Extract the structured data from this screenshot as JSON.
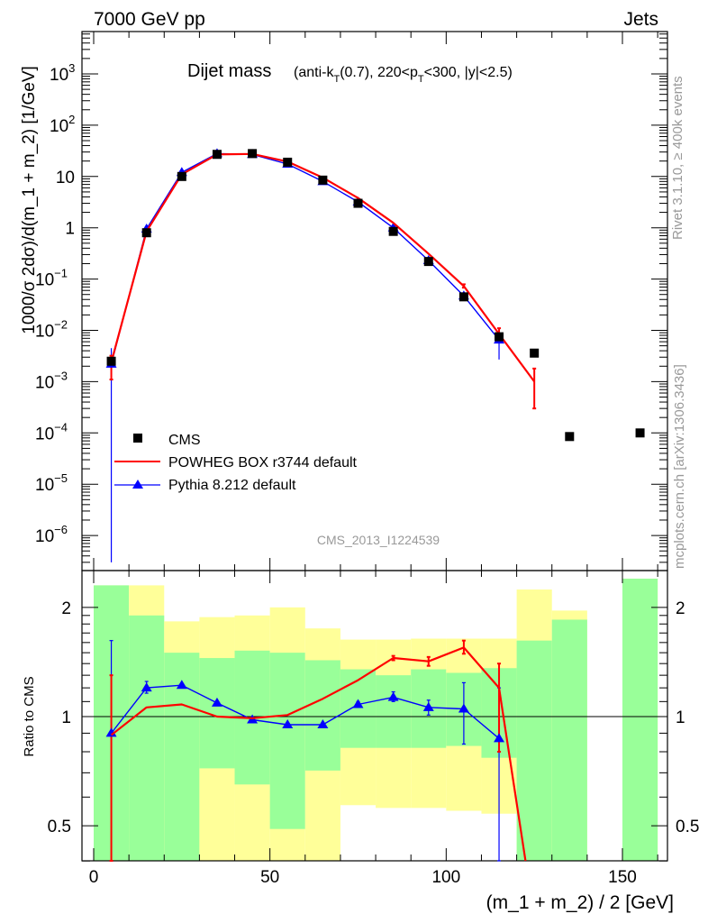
{
  "header": {
    "left": "7000 GeV pp",
    "right": "Jets"
  },
  "side_labels": {
    "rivet": "Rivet 3.1.10, ≥ 400k events",
    "mcplots": "mcplots.cern.ch [arXiv:1306.3436]"
  },
  "colors": {
    "cms": "#000000",
    "powheg": "#ff0000",
    "pythia": "#0000ff",
    "band_inner": "#99ff99",
    "band_outer": "#ffff99"
  },
  "chart_data": {
    "type": "line",
    "title": "Dijet mass",
    "subtitle": "(anti-k_T(0.7), 220<p_T<300, |y|<2.5)",
    "analysis": "CMS_2013_I1224539",
    "xlabel": "(m_1 + m_2) / 2 [GeV]",
    "ylabel": "1000/σ 2dσ)/d(m_1 + m_2) [1/GeV]",
    "ratio_ylabel": "Ratio to CMS",
    "xlim": [
      -5,
      163
    ],
    "ylim": [
      3e-07,
      7000
    ],
    "ratio_ylim": [
      0.35,
      2.3
    ],
    "x_ticks": [
      0,
      50,
      100,
      150
    ],
    "ratio_ticks": [
      0.5,
      1,
      2
    ],
    "legend": [
      "CMS",
      "POWHEG BOX r3744 default",
      "Pythia 8.212 default"
    ],
    "legend_position": "lower-left",
    "x": [
      5,
      15,
      25,
      35,
      45,
      55,
      65,
      75,
      85,
      95,
      105,
      115,
      125,
      135,
      155
    ],
    "cms": [
      0.0025,
      0.8,
      10,
      27,
      28,
      19,
      8.5,
      3.0,
      0.85,
      0.22,
      0.045,
      0.0075,
      0.0036,
      8.5e-05,
      0.0001
    ],
    "powheg": [
      {
        "x": 5,
        "y": 0.0024,
        "lo": 0.0011,
        "hi": 0.0032
      },
      {
        "x": 15,
        "y": 0.85
      },
      {
        "x": 25,
        "y": 11
      },
      {
        "x": 35,
        "y": 27
      },
      {
        "x": 45,
        "y": 27.5
      },
      {
        "x": 55,
        "y": 19.5
      },
      {
        "x": 65,
        "y": 9.5
      },
      {
        "x": 75,
        "y": 3.8
      },
      {
        "x": 85,
        "y": 1.25
      },
      {
        "x": 95,
        "y": 0.31
      },
      {
        "x": 105,
        "y": 0.073,
        "lo": 0.068,
        "hi": 0.079
      },
      {
        "x": 115,
        "y": 0.0085,
        "lo": 0.0065,
        "hi": 0.011
      },
      {
        "x": 125,
        "y": 0.001,
        "lo": 0.0003,
        "hi": 0.0018
      }
    ],
    "pythia": [
      {
        "x": 5,
        "y": 0.0022,
        "lo": 3e-07,
        "hi": 0.0045
      },
      {
        "x": 15,
        "y": 0.95
      },
      {
        "x": 25,
        "y": 12
      },
      {
        "x": 35,
        "y": 28
      },
      {
        "x": 45,
        "y": 27
      },
      {
        "x": 55,
        "y": 17.5
      },
      {
        "x": 65,
        "y": 8
      },
      {
        "x": 75,
        "y": 3.2
      },
      {
        "x": 85,
        "y": 1.0
      },
      {
        "x": 95,
        "y": 0.23,
        "lo": 0.2,
        "hi": 0.26
      },
      {
        "x": 105,
        "y": 0.047,
        "lo": 0.04,
        "hi": 0.055
      },
      {
        "x": 115,
        "y": 0.0065,
        "lo": 0.0027,
        "hi": 0.0095
      }
    ],
    "ratio_bands": [
      {
        "x0": 0,
        "x1": 10,
        "inner": [
          0.2,
          2.3
        ],
        "outer": [
          0.2,
          2.3
        ]
      },
      {
        "x0": 10,
        "x1": 20,
        "inner": [
          0.2,
          1.9
        ],
        "outer": [
          0.2,
          2.3
        ]
      },
      {
        "x0": 20,
        "x1": 30,
        "inner": [
          0.2,
          1.5
        ],
        "outer": [
          0.2,
          1.83
        ]
      },
      {
        "x0": 30,
        "x1": 40,
        "inner": [
          0.72,
          1.45
        ],
        "outer": [
          0.2,
          1.88
        ]
      },
      {
        "x0": 40,
        "x1": 50,
        "inner": [
          0.65,
          1.52
        ],
        "outer": [
          0.2,
          1.9
        ]
      },
      {
        "x0": 50,
        "x1": 60,
        "inner": [
          0.49,
          1.5
        ],
        "outer": [
          0.2,
          2.0
        ]
      },
      {
        "x0": 60,
        "x1": 70,
        "inner": [
          0.71,
          1.43
        ],
        "outer": [
          0.2,
          1.75
        ]
      },
      {
        "x0": 70,
        "x1": 80,
        "inner": [
          0.82,
          1.35
        ],
        "outer": [
          0.57,
          1.63
        ]
      },
      {
        "x0": 80,
        "x1": 90,
        "inner": [
          0.82,
          1.3
        ],
        "outer": [
          0.56,
          1.63
        ]
      },
      {
        "x0": 90,
        "x1": 100,
        "inner": [
          0.82,
          1.35
        ],
        "outer": [
          0.56,
          1.64
        ]
      },
      {
        "x0": 100,
        "x1": 110,
        "inner": [
          0.83,
          1.32
        ],
        "outer": [
          0.55,
          1.64
        ]
      },
      {
        "x0": 110,
        "x1": 120,
        "inner": [
          0.77,
          1.36
        ],
        "outer": [
          0.54,
          1.64
        ]
      },
      {
        "x0": 120,
        "x1": 130,
        "inner": [
          0.2,
          1.62
        ],
        "outer": [
          0.2,
          2.24
        ]
      },
      {
        "x0": 130,
        "x1": 140,
        "inner": [
          0.2,
          1.85
        ],
        "outer": [
          0.2,
          1.96
        ]
      },
      {
        "x0": 140,
        "x1": 150,
        "inner": [
          1,
          1
        ],
        "outer": [
          1,
          1
        ]
      },
      {
        "x0": 150,
        "x1": 160,
        "inner": [
          0.2,
          2.4
        ],
        "outer": [
          0.2,
          2.4
        ]
      }
    ],
    "ratio_powheg": [
      {
        "x": 5,
        "y": 0.89,
        "lo": 0.37,
        "hi": 1.3
      },
      {
        "x": 15,
        "y": 1.06
      },
      {
        "x": 25,
        "y": 1.08
      },
      {
        "x": 35,
        "y": 1.0
      },
      {
        "x": 45,
        "y": 0.99
      },
      {
        "x": 55,
        "y": 1.01
      },
      {
        "x": 65,
        "y": 1.12
      },
      {
        "x": 75,
        "y": 1.26
      },
      {
        "x": 85,
        "y": 1.45,
        "lo": 1.43,
        "hi": 1.47
      },
      {
        "x": 95,
        "y": 1.42,
        "lo": 1.38,
        "hi": 1.46
      },
      {
        "x": 105,
        "y": 1.55,
        "lo": 1.49,
        "hi": 1.62
      },
      {
        "x": 115,
        "y": 1.2,
        "lo": 0.8,
        "hi": 1.4
      },
      {
        "x": 122.5,
        "y": 0.3
      }
    ],
    "ratio_pythia": [
      {
        "x": 5,
        "y": 0.9,
        "lo": 0.3,
        "hi": 1.62
      },
      {
        "x": 15,
        "y": 1.2,
        "lo": 1.16,
        "hi": 1.25
      },
      {
        "x": 25,
        "y": 1.22
      },
      {
        "x": 35,
        "y": 1.09
      },
      {
        "x": 45,
        "y": 0.98
      },
      {
        "x": 55,
        "y": 0.95
      },
      {
        "x": 65,
        "y": 0.95
      },
      {
        "x": 75,
        "y": 1.08,
        "lo": 1.06,
        "hi": 1.1
      },
      {
        "x": 85,
        "y": 1.13,
        "lo": 1.1,
        "hi": 1.17
      },
      {
        "x": 95,
        "y": 1.06,
        "lo": 1.01,
        "hi": 1.11
      },
      {
        "x": 105,
        "y": 1.05,
        "lo": 0.84,
        "hi": 1.24
      },
      {
        "x": 115,
        "y": 0.87,
        "lo": 0.3,
        "hi": 1.2
      }
    ]
  }
}
